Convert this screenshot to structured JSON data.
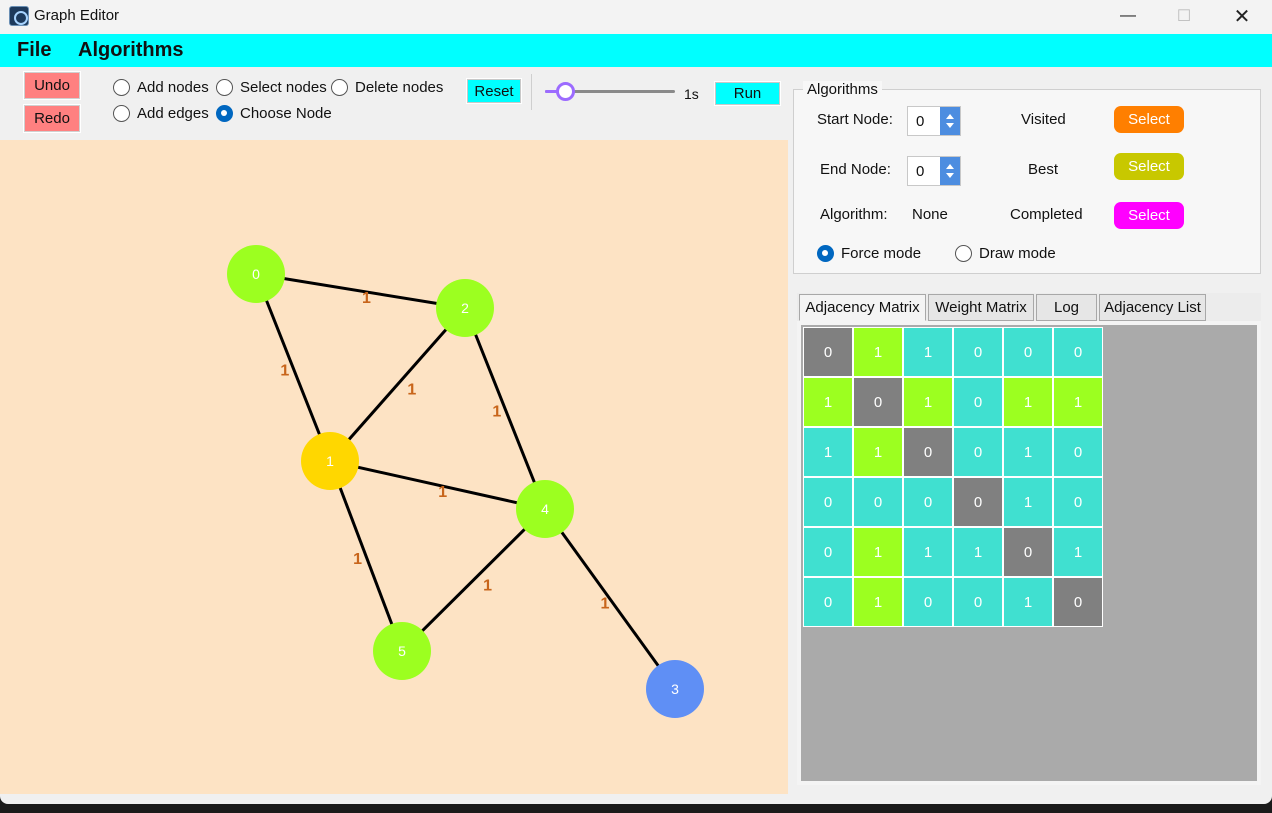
{
  "window": {
    "title": "Graph Editor",
    "minimize_glyph": "—",
    "maximize_glyph": "☐",
    "close_glyph": "✕"
  },
  "menu": {
    "file": "File",
    "algorithms": "Algorithms"
  },
  "toolbar": {
    "undo": "Undo",
    "redo": "Redo",
    "modes": [
      {
        "label": "Add nodes",
        "checked": false
      },
      {
        "label": "Select nodes",
        "checked": false
      },
      {
        "label": "Delete nodes",
        "checked": false
      },
      {
        "label": "Add edges",
        "checked": false
      },
      {
        "label": "Choose Node",
        "checked": true
      }
    ],
    "reset": "Reset",
    "speed_value": 0.15,
    "speed_label": "1s",
    "run": "Run"
  },
  "graph": {
    "background": "#fde3c4",
    "nodes": [
      {
        "id": "0",
        "color": "#9cff20"
      },
      {
        "id": "1",
        "color": "#ffd700"
      },
      {
        "id": "2",
        "color": "#9cff20"
      },
      {
        "id": "3",
        "color": "#5f8ff5"
      },
      {
        "id": "4",
        "color": "#9cff20"
      },
      {
        "id": "5",
        "color": "#9cff20"
      }
    ],
    "edges": [
      {
        "from": "0",
        "to": "2",
        "weight": "1"
      },
      {
        "from": "0",
        "to": "1",
        "weight": "1"
      },
      {
        "from": "1",
        "to": "2",
        "weight": "1"
      },
      {
        "from": "2",
        "to": "4",
        "weight": "1"
      },
      {
        "from": "1",
        "to": "4",
        "weight": "1"
      },
      {
        "from": "1",
        "to": "5",
        "weight": "1"
      },
      {
        "from": "5",
        "to": "4",
        "weight": "1"
      },
      {
        "from": "4",
        "to": "3",
        "weight": "1"
      }
    ],
    "weight_color": "#c8651b"
  },
  "algorithms_panel": {
    "title": "Algorithms",
    "start_node_label": "Start Node:",
    "start_node_value": "0",
    "end_node_label": "End Node:",
    "end_node_value": "0",
    "algorithm_label": "Algorithm:",
    "algorithm_value": "None",
    "visited_label": "Visited",
    "best_label": "Best",
    "completed_label": "Completed",
    "select_label": "Select",
    "visited_color": "#ff7f00",
    "best_color": "#c8c800",
    "completed_color": "#ff00ff",
    "force_mode": "Force mode",
    "draw_mode": "Draw mode",
    "force_checked": true
  },
  "tabs": [
    {
      "label": "Adjacency Matrix",
      "active": true
    },
    {
      "label": "Weight Matrix",
      "active": false
    },
    {
      "label": "Log",
      "active": false
    },
    {
      "label": "Adjacency List",
      "active": false
    }
  ],
  "adjacency_matrix": {
    "values": [
      [
        "0",
        "1",
        "1",
        "0",
        "0",
        "0"
      ],
      [
        "1",
        "0",
        "1",
        "0",
        "1",
        "1"
      ],
      [
        "1",
        "1",
        "0",
        "0",
        "1",
        "0"
      ],
      [
        "0",
        "0",
        "0",
        "0",
        "1",
        "0"
      ],
      [
        "0",
        "1",
        "1",
        "1",
        "0",
        "1"
      ],
      [
        "0",
        "1",
        "0",
        "0",
        "1",
        "0"
      ]
    ],
    "colors": [
      [
        "gray",
        "green",
        "cyan",
        "cyan",
        "cyan",
        "cyan"
      ],
      [
        "green",
        "gray",
        "green",
        "cyan",
        "green",
        "green"
      ],
      [
        "cyan",
        "green",
        "gray",
        "cyan",
        "cyan",
        "cyan"
      ],
      [
        "cyan",
        "cyan",
        "cyan",
        "gray",
        "cyan",
        "cyan"
      ],
      [
        "cyan",
        "green",
        "cyan",
        "cyan",
        "gray",
        "cyan"
      ],
      [
        "cyan",
        "green",
        "cyan",
        "cyan",
        "cyan",
        "gray"
      ]
    ],
    "palette": {
      "gray": "#808080",
      "green": "#9cff20",
      "cyan": "#40e0d0"
    }
  }
}
